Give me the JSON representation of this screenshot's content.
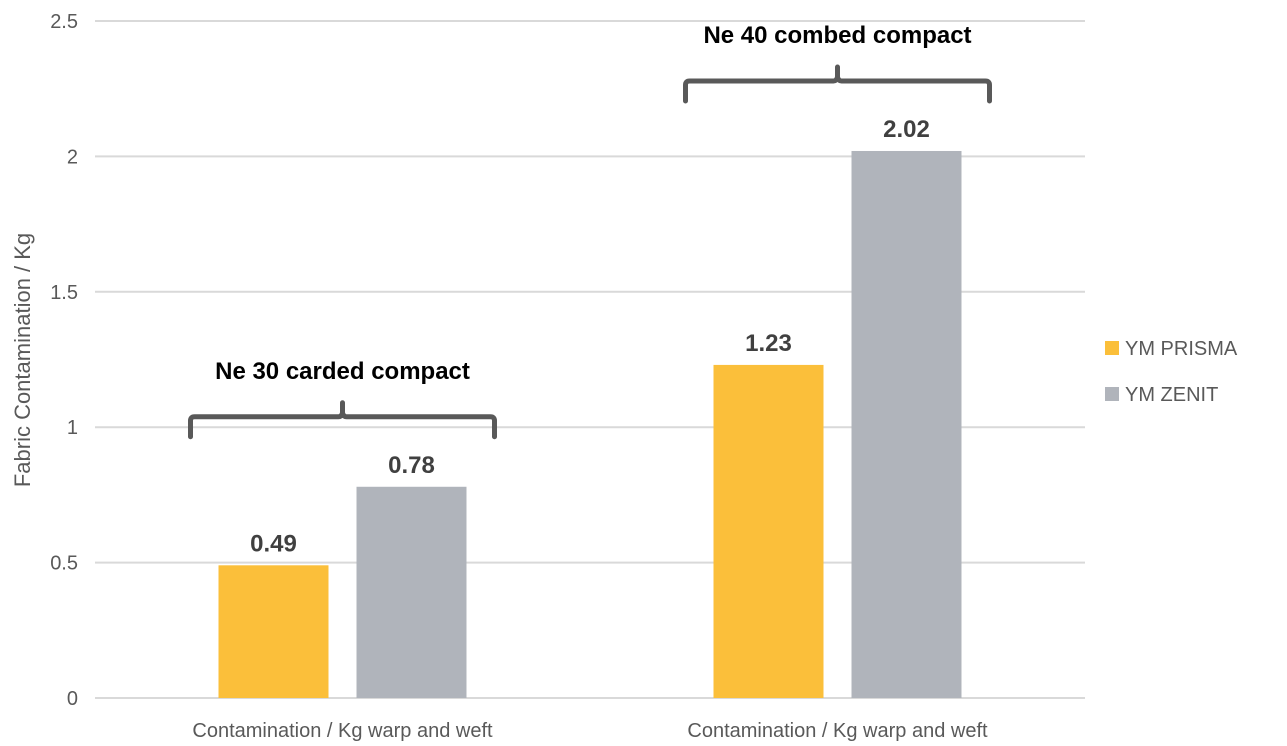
{
  "chart_data": {
    "type": "bar",
    "ylabel": "Fabric Contamination / Kg",
    "xlabel": "",
    "ylim": [
      0,
      2.5
    ],
    "yticks": [
      "0",
      "0.5",
      "1",
      "1.5",
      "2",
      "2.5"
    ],
    "grid": true,
    "legend_position": "right",
    "categories": [
      "Contamination / Kg warp and weft",
      "Contamination / Kg warp and weft"
    ],
    "groups": [
      "Ne 30 carded compact",
      "Ne 40 combed compact"
    ],
    "series": [
      {
        "name": "YM PRISMA",
        "color": "#FBBF3A",
        "values": [
          0.49,
          1.23
        ],
        "labels": [
          "0.49",
          "1.23"
        ]
      },
      {
        "name": "YM ZENIT",
        "color": "#B0B4BB",
        "values": [
          0.78,
          2.02
        ],
        "labels": [
          "0.78",
          "2.02"
        ]
      }
    ]
  }
}
